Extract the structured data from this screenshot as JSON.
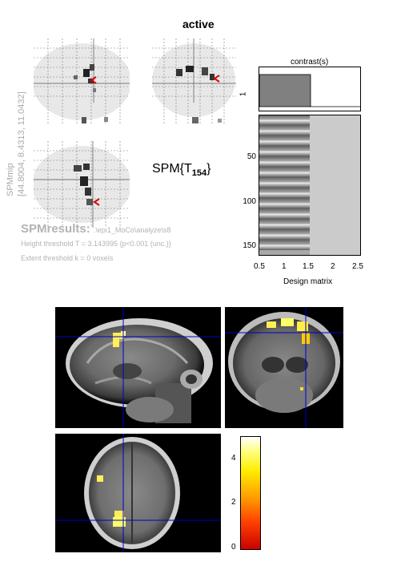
{
  "header": {
    "title": "active"
  },
  "side_label": {
    "text": "SPMmip\n[44.8004, 8.4313, 11.0432]"
  },
  "stat": {
    "main": "SPM{T",
    "sub": "154",
    "close": "}"
  },
  "results": {
    "label": "SPMresults:",
    "path": ".\\epi1_MoCo\\analyze\\s8",
    "height_threshold": "Height threshold T = 3.143995  {p<0.001 (unc.)}",
    "extent_threshold": "Extent threshold k = 0 voxels"
  },
  "contrast": {
    "label": "contrast(s)",
    "row_label": "1"
  },
  "design_matrix": {
    "xlabel": "Design matrix",
    "xticks": [
      "0.5",
      "1",
      "1.5",
      "2",
      "2.5"
    ],
    "yticks": [
      "50",
      "100",
      "150"
    ]
  },
  "colorbar": {
    "ticks": [
      "4",
      "2",
      "0"
    ]
  },
  "colors": {
    "crosshair": "#0000cc",
    "activation_bright": "#ffff66",
    "activation_mid": "#ffcc00",
    "colorbar_low": "#cc0000",
    "colorbar_high": "#ffffff"
  }
}
